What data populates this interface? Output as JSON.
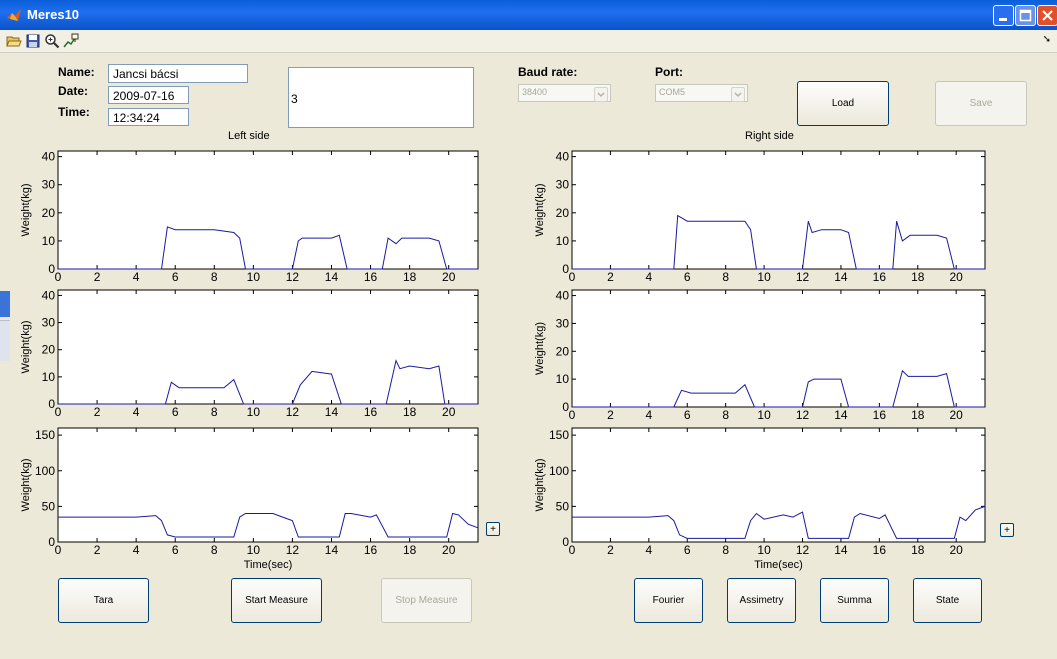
{
  "window": {
    "title": "Meres10"
  },
  "form": {
    "name_label": "Name:",
    "name_value": "Jancsi bácsi",
    "date_label": "Date:",
    "date_value": "2009-07-16",
    "time_label": "Time:",
    "time_value": "12:34:24",
    "note_value": "3"
  },
  "settings": {
    "baud_label": "Baud rate:",
    "baud_value": "38400",
    "port_label": "Port:",
    "port_value": "COM5"
  },
  "buttons": {
    "load": "Load",
    "save": "Save",
    "tara": "Tara",
    "start": "Start Measure",
    "stop": "Stop Measure",
    "fourier": "Fourier",
    "assimetry": "Assimetry",
    "summa": "Summa",
    "state": "State",
    "plus": "+"
  },
  "panels": {
    "left_title": "Left side",
    "right_title": "Right side"
  },
  "colors": {
    "trace": "#1a1aa0",
    "titlebar": "#0a5fd8"
  },
  "chart_data": [
    {
      "type": "line",
      "title": "",
      "xlabel": "",
      "ylabel": "Weight(kg)",
      "xlim": [
        0,
        21.5
      ],
      "ylim": [
        0,
        42
      ],
      "xticks": [
        0,
        2,
        4,
        6,
        8,
        10,
        12,
        14,
        16,
        18,
        20
      ],
      "yticks": [
        0,
        10,
        20,
        30,
        40
      ],
      "x": [
        0,
        5.3,
        5.6,
        6,
        7,
        8,
        9,
        9.3,
        9.6,
        12,
        12.3,
        12.5,
        13,
        14,
        14.4,
        14.8,
        16.6,
        16.9,
        17.3,
        17.6,
        18,
        19,
        19.5,
        19.9,
        21.5
      ],
      "y": [
        0,
        0,
        15,
        14,
        14,
        14,
        13,
        11,
        0,
        0,
        10,
        11,
        11,
        11,
        12,
        0,
        0,
        11,
        9,
        11,
        11,
        11,
        10,
        0,
        0
      ]
    },
    {
      "type": "line",
      "title": "",
      "xlabel": "",
      "ylabel": "Weight(kg)",
      "xlim": [
        0,
        21.5
      ],
      "ylim": [
        0,
        42
      ],
      "xticks": [
        0,
        2,
        4,
        6,
        8,
        10,
        12,
        14,
        16,
        18,
        20
      ],
      "yticks": [
        0,
        10,
        20,
        30,
        40
      ],
      "x": [
        0,
        5.5,
        5.8,
        6.2,
        7,
        8.5,
        9,
        9.5,
        12,
        12.4,
        13,
        14,
        14.5,
        16.8,
        17.3,
        17.5,
        18,
        19,
        19.5,
        19.8,
        21.5
      ],
      "y": [
        0,
        0,
        8,
        6,
        6,
        6,
        9,
        0,
        0,
        7,
        12,
        11,
        0,
        0,
        16,
        13,
        14,
        13,
        14,
        0,
        0
      ]
    },
    {
      "type": "line",
      "title": "",
      "xlabel": "Time(sec)",
      "ylabel": "Weight(kg)",
      "xlim": [
        0,
        21.5
      ],
      "ylim": [
        0,
        160
      ],
      "xticks": [
        0,
        2,
        4,
        6,
        8,
        10,
        12,
        14,
        16,
        18,
        20
      ],
      "yticks": [
        0,
        50,
        100,
        150
      ],
      "x": [
        0,
        4,
        5,
        5.3,
        5.6,
        6,
        9,
        9.3,
        9.6,
        10,
        11,
        11.5,
        12,
        12.3,
        14.4,
        14.7,
        15,
        16,
        16.3,
        16.9,
        19.9,
        20.2,
        20.5,
        21,
        21.5
      ],
      "y": [
        35,
        35,
        37,
        30,
        10,
        7,
        7,
        35,
        40,
        40,
        40,
        35,
        30,
        7,
        7,
        40,
        40,
        35,
        38,
        7,
        7,
        40,
        38,
        25,
        20
      ]
    },
    {
      "type": "line",
      "title": "",
      "xlabel": "",
      "ylabel": "Weight(kg)",
      "xlim": [
        0,
        21.5
      ],
      "ylim": [
        0,
        42
      ],
      "xticks": [
        0,
        2,
        4,
        6,
        8,
        10,
        12,
        14,
        16,
        18,
        20
      ],
      "yticks": [
        0,
        10,
        20,
        30,
        40
      ],
      "x": [
        0,
        5.3,
        5.5,
        6,
        7,
        8,
        9,
        9.3,
        9.6,
        12,
        12.3,
        12.5,
        13,
        14,
        14.4,
        14.8,
        16.7,
        16.9,
        17.2,
        17.6,
        18,
        19,
        19.5,
        19.9,
        21.5
      ],
      "y": [
        0,
        0,
        19,
        17,
        17,
        17,
        17,
        14,
        0,
        0,
        17,
        13,
        14,
        14,
        13,
        0,
        0,
        17,
        10,
        12,
        12,
        12,
        11,
        0,
        0
      ]
    },
    {
      "type": "line",
      "title": "",
      "xlabel": "",
      "ylabel": "Weight(kg)",
      "xlim": [
        0,
        21.5
      ],
      "ylim": [
        0,
        42
      ],
      "xticks": [
        0,
        2,
        4,
        6,
        8,
        10,
        12,
        14,
        16,
        18,
        20
      ],
      "yticks": [
        0,
        10,
        20,
        30,
        40
      ],
      "x": [
        0,
        5.3,
        5.7,
        6.2,
        7,
        8.5,
        9,
        9.5,
        12,
        12.3,
        12.6,
        13,
        14,
        14.4,
        16.7,
        17.2,
        17.5,
        18,
        19,
        19.5,
        19.9,
        21.5
      ],
      "y": [
        0,
        0,
        6,
        5,
        5,
        5,
        8,
        0,
        0,
        9,
        10,
        10,
        10,
        0,
        0,
        13,
        11,
        11,
        11,
        12,
        0,
        0
      ]
    },
    {
      "type": "line",
      "title": "",
      "xlabel": "Time(sec)",
      "ylabel": "Weight(kg)",
      "xlim": [
        0,
        21.5
      ],
      "ylim": [
        0,
        160
      ],
      "xticks": [
        0,
        2,
        4,
        6,
        8,
        10,
        12,
        14,
        16,
        18,
        20
      ],
      "yticks": [
        0,
        50,
        100,
        150
      ],
      "x": [
        0,
        4,
        5,
        5.3,
        5.6,
        6,
        9,
        9.3,
        9.6,
        10,
        11,
        11.5,
        12,
        12.3,
        14.4,
        14.7,
        15,
        16,
        16.3,
        16.9,
        19.9,
        20.2,
        20.5,
        21,
        21.5
      ],
      "y": [
        35,
        35,
        37,
        30,
        10,
        5,
        5,
        30,
        40,
        32,
        38,
        35,
        42,
        5,
        5,
        35,
        40,
        33,
        38,
        5,
        5,
        35,
        30,
        45,
        50
      ]
    }
  ]
}
